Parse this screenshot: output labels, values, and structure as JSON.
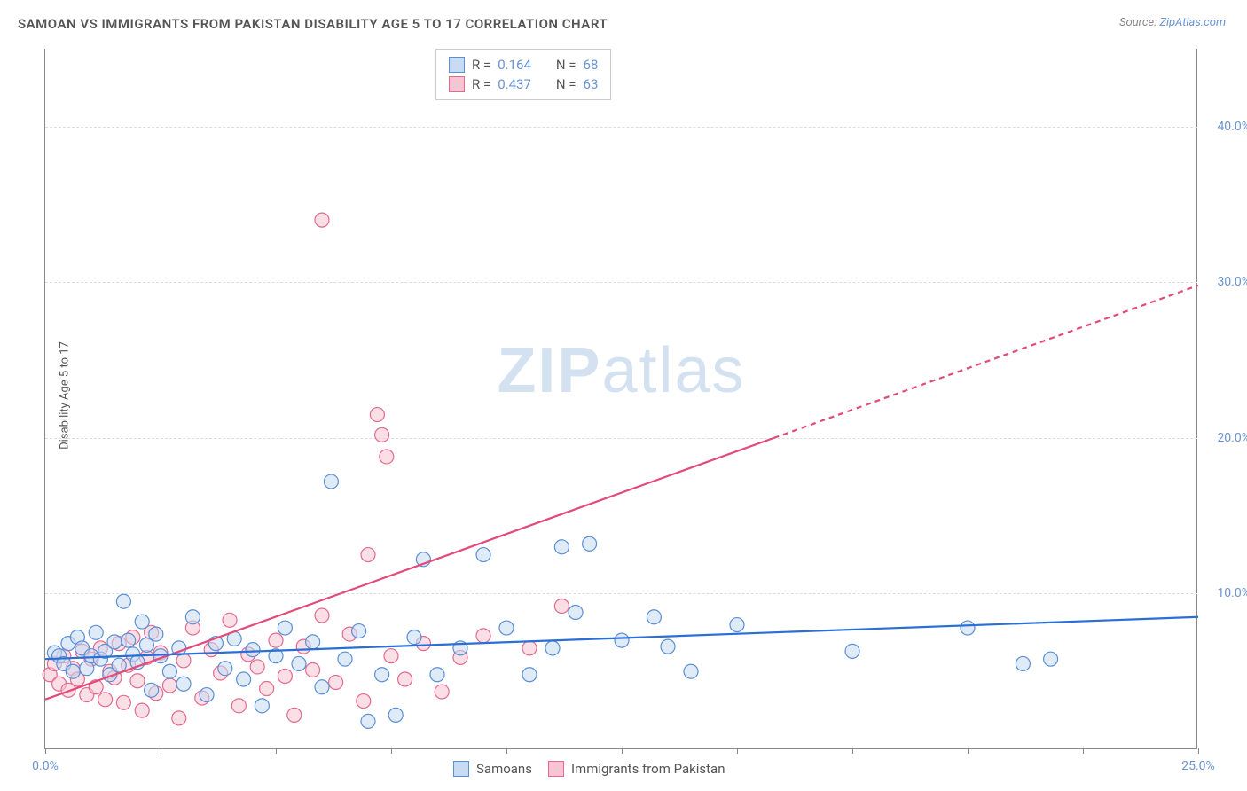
{
  "title": "SAMOAN VS IMMIGRANTS FROM PAKISTAN DISABILITY AGE 5 TO 17 CORRELATION CHART",
  "source_label": "Source: ",
  "source_value": "ZipAtlas.com",
  "ylabel": "Disability Age 5 to 17",
  "watermark_a": "ZIP",
  "watermark_b": "atlas",
  "chart": {
    "type": "scatter",
    "plot_background": "#ffffff",
    "grid_color": "#dddddd",
    "axis_color": "#888888",
    "text_color": "#555555",
    "value_color": "#6a94d4",
    "xlim": [
      0,
      25
    ],
    "ylim": [
      0,
      45
    ],
    "ytick_values": [
      10,
      20,
      30,
      40
    ],
    "ytick_labels": [
      "10.0%",
      "20.0%",
      "30.0%",
      "40.0%"
    ],
    "xtick_values": [
      0,
      2.5,
      5,
      7.5,
      10,
      12.5,
      15,
      17.5,
      20,
      22.5,
      25
    ],
    "xtick_labels_shown": {
      "0": "0.0%",
      "25": "25.0%"
    },
    "marker_radius": 8,
    "marker_stroke_width": 1.2,
    "line_width": 2.2,
    "series": [
      {
        "id": "samoans",
        "label": "Samoans",
        "fill": "#c7dbf2",
        "stroke": "#5b8fd6",
        "fill_opacity": 0.55,
        "line_color": "#2a6fd6",
        "R": "0.164",
        "N": "68",
        "trend": {
          "x1": 0,
          "y1": 5.8,
          "x2": 25,
          "y2": 8.5
        },
        "points": [
          [
            0.2,
            6.2
          ],
          [
            0.3,
            6.0
          ],
          [
            0.4,
            5.5
          ],
          [
            0.5,
            6.8
          ],
          [
            0.6,
            5.0
          ],
          [
            0.7,
            7.2
          ],
          [
            0.8,
            6.5
          ],
          [
            0.9,
            5.2
          ],
          [
            1.0,
            6.0
          ],
          [
            1.1,
            7.5
          ],
          [
            1.2,
            5.8
          ],
          [
            1.3,
            6.3
          ],
          [
            1.4,
            4.8
          ],
          [
            1.5,
            6.9
          ],
          [
            1.6,
            5.4
          ],
          [
            1.7,
            9.5
          ],
          [
            1.8,
            7.0
          ],
          [
            1.9,
            6.1
          ],
          [
            2.0,
            5.6
          ],
          [
            2.1,
            8.2
          ],
          [
            2.2,
            6.7
          ],
          [
            2.3,
            3.8
          ],
          [
            2.4,
            7.4
          ],
          [
            2.5,
            6.0
          ],
          [
            2.7,
            5.0
          ],
          [
            2.9,
            6.5
          ],
          [
            3.0,
            4.2
          ],
          [
            3.2,
            8.5
          ],
          [
            3.5,
            3.5
          ],
          [
            3.7,
            6.8
          ],
          [
            3.9,
            5.2
          ],
          [
            4.1,
            7.1
          ],
          [
            4.3,
            4.5
          ],
          [
            4.5,
            6.4
          ],
          [
            4.7,
            2.8
          ],
          [
            5.0,
            6.0
          ],
          [
            5.2,
            7.8
          ],
          [
            5.5,
            5.5
          ],
          [
            5.8,
            6.9
          ],
          [
            6.0,
            4.0
          ],
          [
            6.2,
            17.2
          ],
          [
            6.5,
            5.8
          ],
          [
            6.8,
            7.6
          ],
          [
            7.0,
            1.8
          ],
          [
            7.3,
            4.8
          ],
          [
            7.6,
            2.2
          ],
          [
            8.0,
            7.2
          ],
          [
            8.2,
            12.2
          ],
          [
            8.5,
            4.8
          ],
          [
            9.0,
            6.5
          ],
          [
            9.5,
            12.5
          ],
          [
            10.0,
            7.8
          ],
          [
            10.5,
            4.8
          ],
          [
            11.0,
            6.5
          ],
          [
            11.2,
            13.0
          ],
          [
            11.5,
            8.8
          ],
          [
            11.8,
            13.2
          ],
          [
            12.5,
            7.0
          ],
          [
            13.2,
            8.5
          ],
          [
            13.5,
            6.6
          ],
          [
            14.0,
            5.0
          ],
          [
            15.0,
            8.0
          ],
          [
            17.5,
            6.3
          ],
          [
            20.0,
            7.8
          ],
          [
            21.2,
            5.5
          ],
          [
            21.8,
            5.8
          ]
        ]
      },
      {
        "id": "pakistan",
        "label": "Immigrants from Pakistan",
        "fill": "#f6c4d3",
        "stroke": "#e36a8e",
        "fill_opacity": 0.55,
        "line_color": "#e34a77",
        "R": "0.437",
        "N": "63",
        "trend": {
          "x1": 0,
          "y1": 3.2,
          "x2": 15.8,
          "y2": 20.0
        },
        "trend_ext": {
          "x1": 15.8,
          "y1": 20.0,
          "x2": 25,
          "y2": 29.8
        },
        "points": [
          [
            0.1,
            4.8
          ],
          [
            0.2,
            5.5
          ],
          [
            0.3,
            4.2
          ],
          [
            0.4,
            6.0
          ],
          [
            0.5,
            3.8
          ],
          [
            0.6,
            5.2
          ],
          [
            0.7,
            4.5
          ],
          [
            0.8,
            6.3
          ],
          [
            0.9,
            3.5
          ],
          [
            1.0,
            5.8
          ],
          [
            1.1,
            4.0
          ],
          [
            1.2,
            6.5
          ],
          [
            1.3,
            3.2
          ],
          [
            1.4,
            5.0
          ],
          [
            1.5,
            4.6
          ],
          [
            1.6,
            6.8
          ],
          [
            1.7,
            3.0
          ],
          [
            1.8,
            5.4
          ],
          [
            1.9,
            7.2
          ],
          [
            2.0,
            4.4
          ],
          [
            2.1,
            2.5
          ],
          [
            2.2,
            5.9
          ],
          [
            2.3,
            7.5
          ],
          [
            2.4,
            3.6
          ],
          [
            2.5,
            6.2
          ],
          [
            2.7,
            4.1
          ],
          [
            2.9,
            2.0
          ],
          [
            3.0,
            5.7
          ],
          [
            3.2,
            7.8
          ],
          [
            3.4,
            3.3
          ],
          [
            3.6,
            6.4
          ],
          [
            3.8,
            4.9
          ],
          [
            4.0,
            8.3
          ],
          [
            4.2,
            2.8
          ],
          [
            4.4,
            6.1
          ],
          [
            4.6,
            5.3
          ],
          [
            4.8,
            3.9
          ],
          [
            5.0,
            7.0
          ],
          [
            5.2,
            4.7
          ],
          [
            5.4,
            2.2
          ],
          [
            5.6,
            6.6
          ],
          [
            5.8,
            5.1
          ],
          [
            6.0,
            8.6
          ],
          [
            6.0,
            34.0
          ],
          [
            6.3,
            4.3
          ],
          [
            6.6,
            7.4
          ],
          [
            6.9,
            3.1
          ],
          [
            7.2,
            21.5
          ],
          [
            7.3,
            20.2
          ],
          [
            7.4,
            18.8
          ],
          [
            7.5,
            6.0
          ],
          [
            7.8,
            4.5
          ],
          [
            8.2,
            6.8
          ],
          [
            8.6,
            3.7
          ],
          [
            9.0,
            5.9
          ],
          [
            9.5,
            7.3
          ],
          [
            10.5,
            6.5
          ],
          [
            11.2,
            9.2
          ],
          [
            7.0,
            12.5
          ]
        ]
      }
    ],
    "stat_legend": {
      "R_label": "R  =",
      "N_label": "N  ="
    }
  }
}
